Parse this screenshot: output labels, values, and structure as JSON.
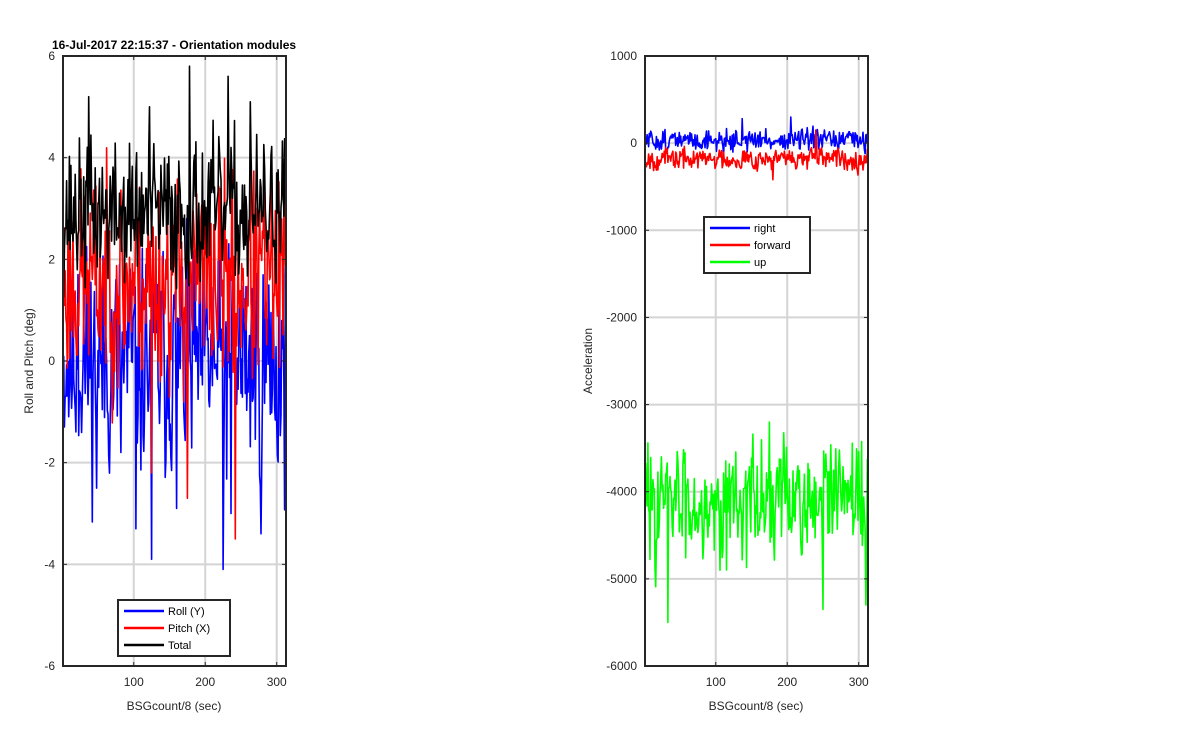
{
  "chart_data": [
    {
      "type": "line",
      "title": "16-Jul-2017 22:15:37 - Orientation modules",
      "xlabel": "BSGcount/8 (sec)",
      "ylabel": "Roll and Pitch (deg)",
      "xlim": [
        1,
        313
      ],
      "ylim": [
        -6,
        6
      ],
      "xticks": [
        100,
        200,
        300
      ],
      "yticks": [
        -6,
        -4,
        -2,
        0,
        2,
        4,
        6
      ],
      "grid": true,
      "legend_location": "bottom",
      "series": [
        {
          "name": "Roll (Y)",
          "color": "#0000ff",
          "generator": {
            "mean": 0.0,
            "spread": 1.3,
            "min": -4.1,
            "max": 2.8,
            "seed": 11
          },
          "notable_points": [
            [
              22,
              1.7
            ],
            [
              48,
              -2.5
            ],
            [
              82,
              -1.8
            ],
            [
              103,
              -3.3
            ],
            [
              125,
              -3.9
            ],
            [
              160,
              -2.9
            ],
            [
              225,
              -4.1
            ],
            [
              236,
              -3.0
            ],
            [
              278,
              -3.4
            ],
            [
              300,
              -1.2
            ]
          ]
        },
        {
          "name": "Pitch (X)",
          "color": "#ff0000",
          "generator": {
            "mean": 1.6,
            "spread": 1.2,
            "min": -3.5,
            "max": 4.6,
            "seed": 23
          },
          "notable_points": [
            [
              125,
              -2.2
            ],
            [
              175,
              -2.7
            ],
            [
              242,
              -3.5
            ],
            [
              290,
              1.6
            ]
          ]
        },
        {
          "name": "Total",
          "color": "#000000",
          "generator": {
            "mean": 2.9,
            "spread": 0.8,
            "min": 0.5,
            "max": 5.8,
            "seed": 37
          },
          "notable_points": [
            [
              37,
              5.2
            ],
            [
              122,
              5.0
            ],
            [
              178,
              5.8
            ],
            [
              232,
              5.6
            ],
            [
              263,
              5.1
            ],
            [
              300,
              3.7
            ]
          ]
        }
      ]
    },
    {
      "type": "line",
      "title": "",
      "xlabel": "BSGcount/8 (sec)",
      "ylabel": "Acceleration",
      "xlim": [
        1,
        313
      ],
      "ylim": [
        -6000,
        1000
      ],
      "xticks": [
        100,
        200,
        300
      ],
      "yticks": [
        -6000,
        -5000,
        -4000,
        -3000,
        -2000,
        -1000,
        0,
        1000
      ],
      "grid": true,
      "legend_location": "upper-center",
      "series": [
        {
          "name": "right",
          "color": "#0000ff",
          "generator": {
            "mean": 30,
            "spread": 70,
            "min": -150,
            "max": 300,
            "seed": 51
          },
          "notable_points": [
            [
              137,
              280
            ],
            [
              205,
              300
            ]
          ]
        },
        {
          "name": "forward",
          "color": "#ff0000",
          "generator": {
            "mean": -180,
            "spread": 70,
            "min": -420,
            "max": 170,
            "seed": 67
          },
          "notable_points": [
            [
              240,
              150
            ],
            [
              180,
              -420
            ]
          ]
        },
        {
          "name": "up",
          "color": "#00ff00",
          "generator": {
            "mean": -4100,
            "spread": 380,
            "min": -5500,
            "max": -3200,
            "seed": 83
          },
          "notable_points": [
            [
              33,
              -5500
            ],
            [
              175,
              -3200
            ],
            [
              250,
              -5350
            ],
            [
              310,
              -5300
            ]
          ]
        }
      ]
    }
  ]
}
